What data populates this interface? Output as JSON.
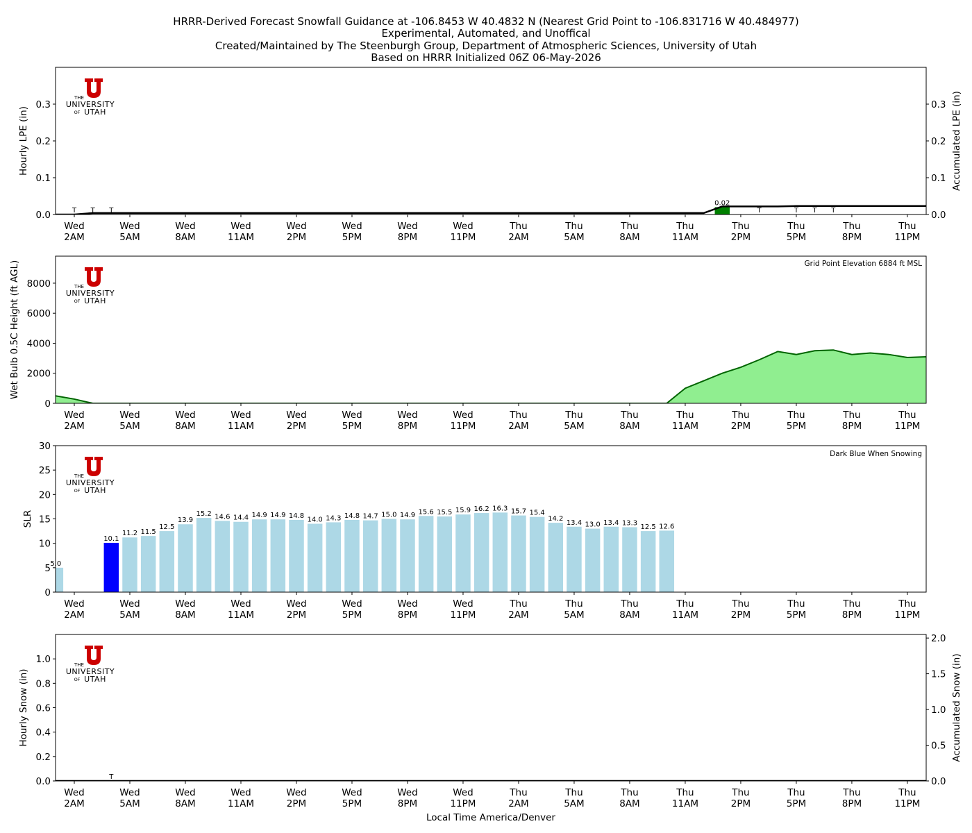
{
  "title_lines": [
    "HRRR-Derived Forecast Snowfall Guidance at -106.8453 W 40.4832 N (Nearest Grid Point to -106.831716 W 40.484977)",
    "Experimental, Automated, and Unoffical",
    "Created/Maintained by The Steenburgh Group, Department of Atmospheric Sciences, University of Utah",
    "Based on HRRR Initialized 06Z 06-May-2026"
  ],
  "logo": {
    "the": "THE",
    "university": "UNIVERSITY",
    "of": "OF",
    "utah": "UTAH",
    "color": "#cc0000"
  },
  "xlabel": "Local Time America/Denver",
  "time_ticks": [
    [
      "Wed",
      "2AM"
    ],
    [
      "Wed",
      "5AM"
    ],
    [
      "Wed",
      "8AM"
    ],
    [
      "Wed",
      "11AM"
    ],
    [
      "Wed",
      "2PM"
    ],
    [
      "Wed",
      "5PM"
    ],
    [
      "Wed",
      "8PM"
    ],
    [
      "Wed",
      "11PM"
    ],
    [
      "Thu",
      "2AM"
    ],
    [
      "Thu",
      "5AM"
    ],
    [
      "Thu",
      "8AM"
    ],
    [
      "Thu",
      "11AM"
    ],
    [
      "Thu",
      "2PM"
    ],
    [
      "Thu",
      "5PM"
    ],
    [
      "Thu",
      "8PM"
    ],
    [
      "Thu",
      "11PM"
    ]
  ],
  "chart_data": [
    {
      "type": "bar",
      "ylabel": "Hourly LPE (in)",
      "y2label": "Accumulated LPE (in)",
      "ylim": [
        0,
        0.4
      ],
      "yticks": [
        "0.0",
        "0.1",
        "0.2",
        "0.3"
      ],
      "y2ticks": [
        "0.0",
        "0.1",
        "0.2",
        "0.3"
      ],
      "bar_color": "#008000",
      "bars": [
        {
          "hour": 36,
          "value": 0.02,
          "label": "0.02"
        }
      ],
      "trace_labels": [
        {
          "hour": 1,
          "label": "T"
        },
        {
          "hour": 2,
          "label": "T"
        },
        {
          "hour": 3,
          "label": "T"
        },
        {
          "hour": 38,
          "label": "T"
        },
        {
          "hour": 40,
          "label": "T"
        },
        {
          "hour": 41,
          "label": "T"
        },
        {
          "hour": 42,
          "label": "T"
        }
      ],
      "accumulated": {
        "hours": [
          0,
          1,
          2,
          3,
          4,
          5,
          6,
          35,
          36,
          37,
          38,
          39,
          40,
          41,
          47
        ],
        "values": [
          0,
          0,
          0.004,
          0.004,
          0.004,
          0.004,
          0.004,
          0.004,
          0.022,
          0.022,
          0.022,
          0.022,
          0.023,
          0.023,
          0.023
        ]
      }
    },
    {
      "type": "area",
      "ylabel": "Wet Bulb 0.5C Height (ft AGL)",
      "annotation": "Grid Point Elevation 6884 ft MSL",
      "ylim": [
        0,
        9800
      ],
      "yticks": [
        "0",
        "2000",
        "4000",
        "6000",
        "8000"
      ],
      "fill_color": "#90ee90",
      "line_color": "#006400",
      "hours": [
        0,
        1,
        2,
        3,
        4,
        5,
        6,
        7,
        8,
        9,
        10,
        11,
        12,
        13,
        14,
        15,
        16,
        17,
        18,
        19,
        20,
        21,
        22,
        23,
        24,
        25,
        26,
        27,
        28,
        29,
        30,
        31,
        32,
        33,
        34,
        35,
        36,
        37,
        38,
        39,
        40,
        41,
        42,
        43,
        44,
        45,
        46,
        47
      ],
      "values": [
        500,
        280,
        0,
        0,
        0,
        0,
        0,
        0,
        0,
        0,
        0,
        0,
        0,
        0,
        0,
        0,
        0,
        0,
        0,
        0,
        0,
        0,
        0,
        0,
        0,
        0,
        0,
        0,
        0,
        0,
        0,
        0,
        0,
        0,
        1000,
        1500,
        2000,
        2400,
        2900,
        3450,
        3250,
        3500,
        3550,
        3250,
        3350,
        3250,
        3050,
        3100
      ]
    },
    {
      "type": "bar",
      "ylabel": "SLR",
      "annotation": "Dark Blue When Snowing",
      "ylim": [
        0,
        30
      ],
      "yticks": [
        "0",
        "5",
        "10",
        "15",
        "20",
        "25",
        "30"
      ],
      "light_color": "#add8e6",
      "snow_color": "#0000ff",
      "bars": [
        {
          "hour": 0,
          "value": 5.0,
          "label": "5.0",
          "snowing": false
        },
        {
          "hour": 3,
          "value": 10.1,
          "label": "10.1",
          "snowing": true
        },
        {
          "hour": 4,
          "value": 11.2,
          "label": "11.2",
          "snowing": false
        },
        {
          "hour": 5,
          "value": 11.5,
          "label": "11.5",
          "snowing": false
        },
        {
          "hour": 6,
          "value": 12.5,
          "label": "12.5",
          "snowing": false
        },
        {
          "hour": 7,
          "value": 13.9,
          "label": "13.9",
          "snowing": false
        },
        {
          "hour": 8,
          "value": 15.2,
          "label": "15.2",
          "snowing": false
        },
        {
          "hour": 9,
          "value": 14.6,
          "label": "14.6",
          "snowing": false
        },
        {
          "hour": 10,
          "value": 14.4,
          "label": "14.4",
          "snowing": false
        },
        {
          "hour": 11,
          "value": 14.9,
          "label": "14.9",
          "snowing": false
        },
        {
          "hour": 12,
          "value": 14.9,
          "label": "14.9",
          "snowing": false
        },
        {
          "hour": 13,
          "value": 14.8,
          "label": "14.8",
          "snowing": false
        },
        {
          "hour": 14,
          "value": 14.0,
          "label": "14.0",
          "snowing": false
        },
        {
          "hour": 15,
          "value": 14.3,
          "label": "14.3",
          "snowing": false
        },
        {
          "hour": 16,
          "value": 14.8,
          "label": "14.8",
          "snowing": false
        },
        {
          "hour": 17,
          "value": 14.7,
          "label": "14.7",
          "snowing": false
        },
        {
          "hour": 18,
          "value": 15.0,
          "label": "15.0",
          "snowing": false
        },
        {
          "hour": 19,
          "value": 14.9,
          "label": "14.9",
          "snowing": false
        },
        {
          "hour": 20,
          "value": 15.6,
          "label": "15.6",
          "snowing": false
        },
        {
          "hour": 21,
          "value": 15.5,
          "label": "15.5",
          "snowing": false
        },
        {
          "hour": 22,
          "value": 15.9,
          "label": "15.9",
          "snowing": false
        },
        {
          "hour": 23,
          "value": 16.2,
          "label": "16.2",
          "snowing": false
        },
        {
          "hour": 24,
          "value": 16.3,
          "label": "16.3",
          "snowing": false
        },
        {
          "hour": 25,
          "value": 15.7,
          "label": "15.7",
          "snowing": false
        },
        {
          "hour": 26,
          "value": 15.4,
          "label": "15.4",
          "snowing": false
        },
        {
          "hour": 27,
          "value": 14.2,
          "label": "14.2",
          "snowing": false
        },
        {
          "hour": 28,
          "value": 13.4,
          "label": "13.4",
          "snowing": false
        },
        {
          "hour": 29,
          "value": 13.0,
          "label": "13.0",
          "snowing": false
        },
        {
          "hour": 30,
          "value": 13.4,
          "label": "13.4",
          "snowing": false
        },
        {
          "hour": 31,
          "value": 13.3,
          "label": "13.3",
          "snowing": false
        },
        {
          "hour": 32,
          "value": 12.5,
          "label": "12.5",
          "snowing": false
        },
        {
          "hour": 33,
          "value": 12.6,
          "label": "12.6",
          "snowing": false
        }
      ]
    },
    {
      "type": "bar",
      "ylabel": "Hourly Snow (in)",
      "y2label": "Accumulated Snow (in)",
      "ylim": [
        0,
        1.2
      ],
      "y2lim": [
        0,
        2.05
      ],
      "yticks": [
        "0.0",
        "0.2",
        "0.4",
        "0.6",
        "0.8",
        "1.0"
      ],
      "y2ticks": [
        "0.0",
        "0.5",
        "1.0",
        "1.5",
        "2.0"
      ],
      "bars": [],
      "trace_labels": [
        {
          "hour": 3,
          "label": "T"
        }
      ],
      "accumulated": {
        "hours": [
          0,
          47
        ],
        "values": [
          0,
          0
        ]
      }
    }
  ]
}
